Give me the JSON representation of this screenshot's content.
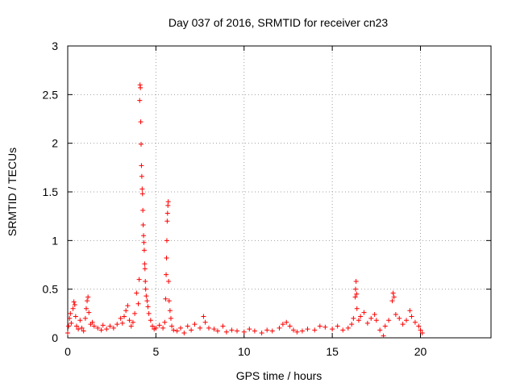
{
  "chart_data": {
    "type": "scatter",
    "title": "Day 037 of 2016, SRMTID for receiver cn23",
    "xlabel": "GPS time / hours",
    "ylabel": "SRMTID / TECUs",
    "xlim": [
      0,
      24
    ],
    "ylim": [
      0,
      3
    ],
    "xticks": [
      0,
      5,
      10,
      15,
      20
    ],
    "yticks": [
      0,
      0.5,
      1,
      1.5,
      2,
      2.5,
      3
    ],
    "xtick_labels": [
      "0",
      "5",
      "10",
      "15",
      "20"
    ],
    "ytick_labels": [
      "0",
      "0.5",
      "1",
      "1.5",
      "2",
      "2.5",
      "3"
    ],
    "grid": true,
    "marker": "plus",
    "series": [
      {
        "name": "SRMTID",
        "color": "#ff0000",
        "points": [
          [
            0.0,
            0.05
          ],
          [
            0.05,
            0.12
          ],
          [
            0.1,
            0.2
          ],
          [
            0.15,
            0.25
          ],
          [
            0.2,
            0.15
          ],
          [
            0.3,
            0.3
          ],
          [
            0.35,
            0.37
          ],
          [
            0.4,
            0.34
          ],
          [
            0.45,
            0.22
          ],
          [
            0.5,
            0.12
          ],
          [
            0.6,
            0.09
          ],
          [
            0.7,
            0.18
          ],
          [
            0.8,
            0.1
          ],
          [
            0.9,
            0.07
          ],
          [
            1.0,
            0.2
          ],
          [
            1.05,
            0.3
          ],
          [
            1.1,
            0.38
          ],
          [
            1.15,
            0.42
          ],
          [
            1.2,
            0.26
          ],
          [
            1.3,
            0.14
          ],
          [
            1.4,
            0.16
          ],
          [
            1.5,
            0.12
          ],
          [
            1.7,
            0.1
          ],
          [
            1.9,
            0.08
          ],
          [
            2.0,
            0.13
          ],
          [
            2.2,
            0.09
          ],
          [
            2.4,
            0.12
          ],
          [
            2.6,
            0.1
          ],
          [
            2.8,
            0.14
          ],
          [
            3.0,
            0.2
          ],
          [
            3.1,
            0.15
          ],
          [
            3.2,
            0.22
          ],
          [
            3.3,
            0.28
          ],
          [
            3.4,
            0.33
          ],
          [
            3.5,
            0.18
          ],
          [
            3.6,
            0.12
          ],
          [
            3.7,
            0.16
          ],
          [
            3.8,
            0.25
          ],
          [
            3.9,
            0.46
          ],
          [
            4.0,
            0.35
          ],
          [
            4.05,
            0.6
          ],
          [
            4.08,
            2.44
          ],
          [
            4.1,
            2.6
          ],
          [
            4.12,
            2.57
          ],
          [
            4.14,
            2.22
          ],
          [
            4.16,
            1.99
          ],
          [
            4.18,
            1.77
          ],
          [
            4.2,
            1.66
          ],
          [
            4.22,
            1.53
          ],
          [
            4.24,
            1.48
          ],
          [
            4.26,
            1.31
          ],
          [
            4.28,
            1.16
          ],
          [
            4.3,
            1.05
          ],
          [
            4.32,
            0.98
          ],
          [
            4.34,
            0.9
          ],
          [
            4.36,
            0.76
          ],
          [
            4.38,
            0.71
          ],
          [
            4.4,
            0.58
          ],
          [
            4.42,
            0.5
          ],
          [
            4.45,
            0.43
          ],
          [
            4.5,
            0.38
          ],
          [
            4.55,
            0.32
          ],
          [
            4.6,
            0.25
          ],
          [
            4.7,
            0.18
          ],
          [
            4.8,
            0.12
          ],
          [
            4.9,
            0.09
          ],
          [
            5.0,
            0.1
          ],
          [
            5.2,
            0.13
          ],
          [
            5.4,
            0.1
          ],
          [
            5.5,
            0.16
          ],
          [
            5.55,
            0.4
          ],
          [
            5.58,
            0.65
          ],
          [
            5.6,
            0.82
          ],
          [
            5.62,
            1.0
          ],
          [
            5.64,
            1.2
          ],
          [
            5.66,
            1.28
          ],
          [
            5.68,
            1.36
          ],
          [
            5.7,
            1.4
          ],
          [
            5.72,
            0.58
          ],
          [
            5.75,
            0.38
          ],
          [
            5.8,
            0.28
          ],
          [
            5.85,
            0.2
          ],
          [
            5.9,
            0.12
          ],
          [
            6.0,
            0.08
          ],
          [
            6.2,
            0.07
          ],
          [
            6.4,
            0.1
          ],
          [
            6.6,
            0.05
          ],
          [
            6.8,
            0.12
          ],
          [
            7.0,
            0.08
          ],
          [
            7.2,
            0.14
          ],
          [
            7.5,
            0.1
          ],
          [
            7.7,
            0.22
          ],
          [
            7.8,
            0.16
          ],
          [
            8.0,
            0.1
          ],
          [
            8.3,
            0.09
          ],
          [
            8.5,
            0.07
          ],
          [
            8.8,
            0.12
          ],
          [
            9.0,
            0.06
          ],
          [
            9.3,
            0.08
          ],
          [
            9.6,
            0.07
          ],
          [
            10.0,
            0.06
          ],
          [
            10.3,
            0.09
          ],
          [
            10.6,
            0.07
          ],
          [
            11.0,
            0.05
          ],
          [
            11.3,
            0.08
          ],
          [
            11.6,
            0.07
          ],
          [
            12.0,
            0.1
          ],
          [
            12.2,
            0.14
          ],
          [
            12.4,
            0.16
          ],
          [
            12.6,
            0.12
          ],
          [
            12.8,
            0.08
          ],
          [
            13.0,
            0.06
          ],
          [
            13.3,
            0.07
          ],
          [
            13.6,
            0.09
          ],
          [
            14.0,
            0.08
          ],
          [
            14.3,
            0.12
          ],
          [
            14.6,
            0.11
          ],
          [
            15.0,
            0.09
          ],
          [
            15.3,
            0.12
          ],
          [
            15.6,
            0.08
          ],
          [
            15.9,
            0.1
          ],
          [
            16.1,
            0.14
          ],
          [
            16.2,
            0.2
          ],
          [
            16.3,
            0.42
          ],
          [
            16.32,
            0.5
          ],
          [
            16.35,
            0.58
          ],
          [
            16.38,
            0.45
          ],
          [
            16.4,
            0.3
          ],
          [
            16.5,
            0.18
          ],
          [
            16.6,
            0.22
          ],
          [
            16.8,
            0.26
          ],
          [
            17.0,
            0.15
          ],
          [
            17.2,
            0.2
          ],
          [
            17.4,
            0.24
          ],
          [
            17.5,
            0.18
          ],
          [
            17.7,
            0.08
          ],
          [
            17.9,
            0.02
          ],
          [
            18.0,
            0.12
          ],
          [
            18.2,
            0.18
          ],
          [
            18.4,
            0.38
          ],
          [
            18.45,
            0.46
          ],
          [
            18.5,
            0.42
          ],
          [
            18.6,
            0.24
          ],
          [
            18.8,
            0.2
          ],
          [
            19.0,
            0.14
          ],
          [
            19.2,
            0.18
          ],
          [
            19.4,
            0.28
          ],
          [
            19.5,
            0.22
          ],
          [
            19.7,
            0.16
          ],
          [
            19.9,
            0.12
          ],
          [
            20.0,
            0.08
          ],
          [
            20.1,
            0.05
          ]
        ]
      }
    ]
  }
}
